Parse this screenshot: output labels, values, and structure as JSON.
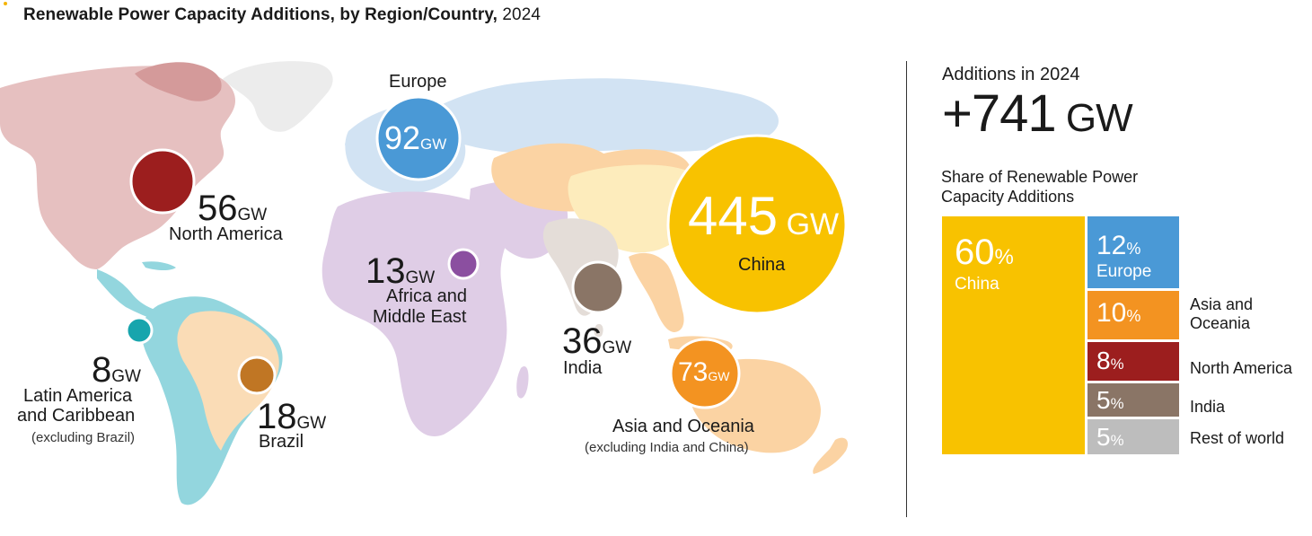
{
  "title": {
    "main": "Renewable Power Capacity Additions, by Region/Country,",
    "year": "2024"
  },
  "colors": {
    "china": "#f8c200",
    "europe": "#4a99d6",
    "asia_oceania": "#f39321",
    "north_america": "#9c1e1e",
    "india": "#8a7566",
    "africa_middle_east": "#8b4fa0",
    "latin_america": "#17a5ad",
    "brazil": "#c07624",
    "rest_of_world": "#bdbdbd"
  },
  "map_labels": {
    "north_america": {
      "value": "56",
      "unit": "GW",
      "name": "North America"
    },
    "europe": {
      "name": "Europe",
      "value": "92",
      "unit": "GW"
    },
    "africa": {
      "value": "13",
      "unit": "GW",
      "name_line1": "Africa and",
      "name_line2": "Middle East"
    },
    "india": {
      "value": "36",
      "unit": "GW",
      "name": "India"
    },
    "china": {
      "value": "445",
      "unit": "GW",
      "name": "China"
    },
    "asia": {
      "value": "73",
      "unit": "GW",
      "name": "Asia and Oceania",
      "note": "(excluding India and China)"
    },
    "latam": {
      "value": "8",
      "unit": "GW",
      "name_line1": "Latin America",
      "name_line2": "and Caribbean",
      "note": "(excluding Brazil)"
    },
    "brazil": {
      "value": "18",
      "unit": "GW",
      "name": "Brazil"
    }
  },
  "summary": {
    "additions_label": "Additions in 2024",
    "total_value": "+741",
    "total_unit": "GW",
    "share_label": "Share of Renewable Power Capacity Additions"
  },
  "share_tiles": {
    "china": {
      "value": "60",
      "pct": "%",
      "name": "China"
    },
    "europe": {
      "value": "12",
      "pct": "%",
      "name": "Europe"
    },
    "asia": {
      "value": "10",
      "pct": "%",
      "legend_line1": "Asia and",
      "legend_line2": "Oceania"
    },
    "north_america": {
      "value": "8",
      "pct": "%",
      "legend": "North America"
    },
    "india": {
      "value": "5",
      "pct": "%",
      "legend": "India"
    },
    "rest": {
      "value": "5",
      "pct": "%",
      "legend": "Rest of world"
    }
  },
  "chart_data": {
    "type": "bubble-map-with-treemap",
    "title": "Renewable Power Capacity Additions, by Region/Country, 2024",
    "unit": "GW",
    "total": 741,
    "regions": [
      {
        "name": "China",
        "value": 445
      },
      {
        "name": "Europe",
        "value": 92
      },
      {
        "name": "Asia and Oceania (excluding India and China)",
        "value": 73
      },
      {
        "name": "North America",
        "value": 56
      },
      {
        "name": "India",
        "value": 36
      },
      {
        "name": "Brazil",
        "value": 18
      },
      {
        "name": "Africa and Middle East",
        "value": 13
      },
      {
        "name": "Latin America and Caribbean (excluding Brazil)",
        "value": 8
      }
    ],
    "shares": [
      {
        "name": "China",
        "percent": 60
      },
      {
        "name": "Europe",
        "percent": 12
      },
      {
        "name": "Asia and Oceania",
        "percent": 10
      },
      {
        "name": "North America",
        "percent": 8
      },
      {
        "name": "India",
        "percent": 5
      },
      {
        "name": "Rest of world",
        "percent": 5
      }
    ]
  }
}
